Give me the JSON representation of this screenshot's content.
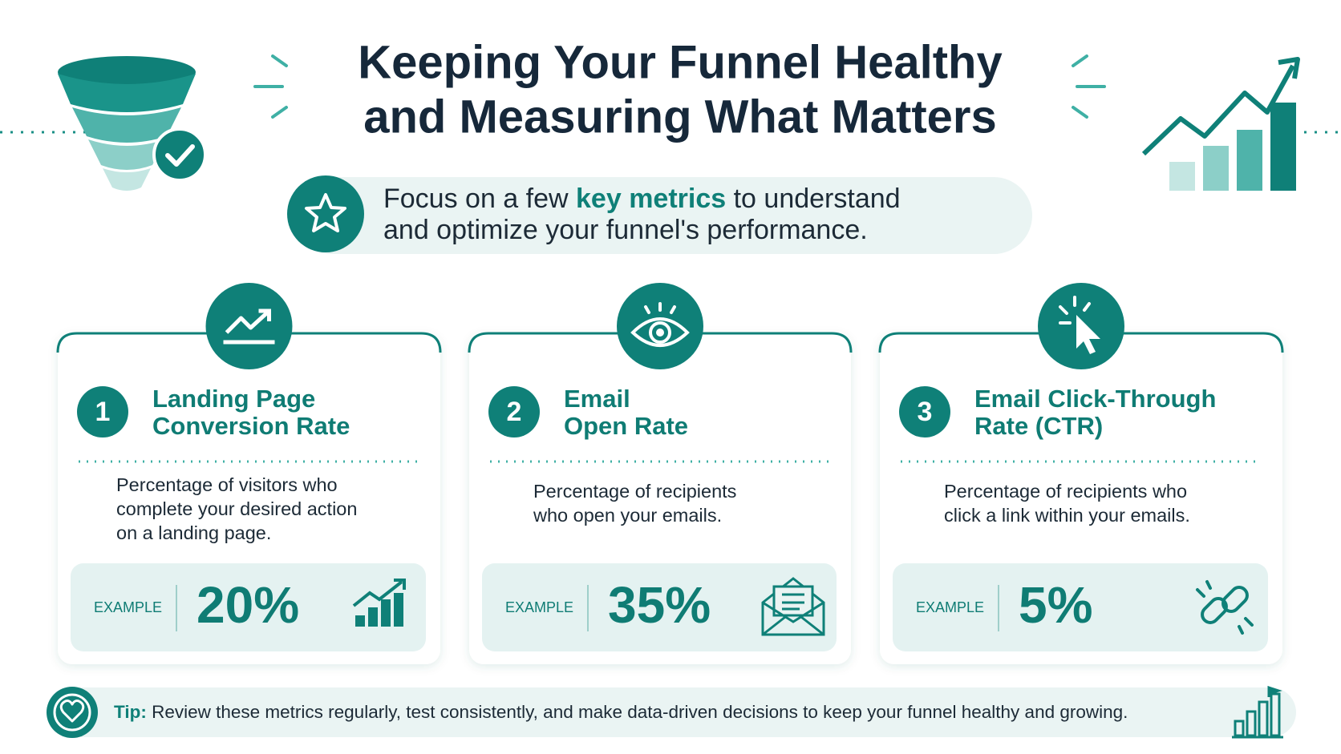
{
  "header": {
    "title_lines": [
      "Keeping Your Funnel Healthy",
      "and Measuring What Matters"
    ]
  },
  "subtitle": {
    "before": "Focus on a few",
    "highlight": "key metrics",
    "after": "to understand",
    "line2": "and optimize your funnel's performance."
  },
  "cards": [
    {
      "number": "1",
      "title_lines": [
        "Landing Page",
        "Conversion Rate"
      ],
      "description_lines": [
        "Percentage of visitors who",
        "complete your desired action",
        "on a landing page."
      ],
      "example_label": "EXAMPLE",
      "example_value": "20%"
    },
    {
      "number": "2",
      "title_lines": [
        "Email",
        "Open Rate"
      ],
      "description_lines": [
        "Percentage of recipients",
        "who open your emails."
      ],
      "example_label": "EXAMPLE",
      "example_value": "35%"
    },
    {
      "number": "3",
      "title_lines": [
        "Email Click-Through",
        "Rate (CTR)"
      ],
      "description_lines": [
        "Percentage of recipients who",
        "click a link within your emails."
      ],
      "example_label": "EXAMPLE",
      "example_value": "5%"
    }
  ],
  "tip": {
    "label": "Tip:",
    "text": "Review these metrics regularly, test consistently, and make data-driven decisions to keep your funnel healthy and growing."
  }
}
